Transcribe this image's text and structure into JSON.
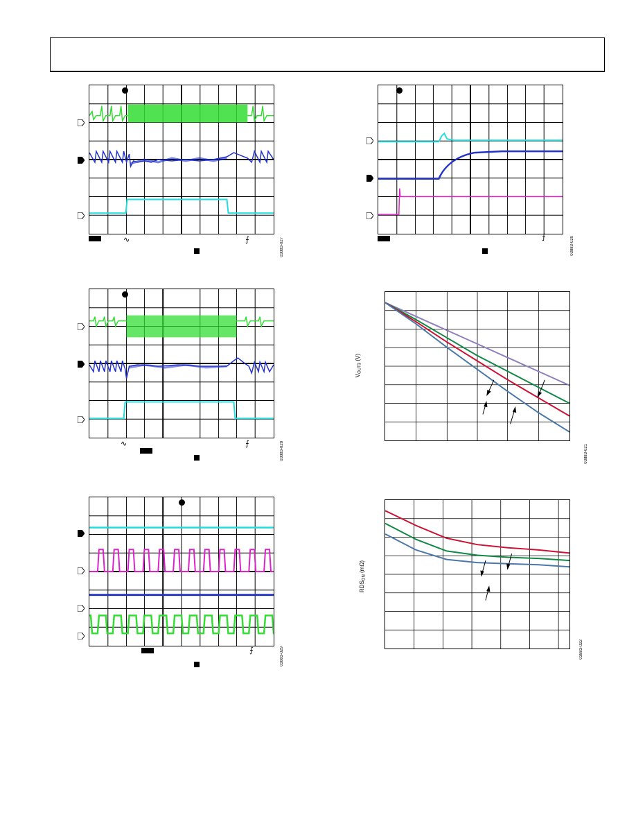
{
  "header": {
    "title": ""
  },
  "figures": {
    "fig1_id": "03883-027",
    "fig2_id": "03883-020",
    "fig3_id": "03883-028",
    "fig4_id": "03883-021",
    "fig5_id": "03883-029",
    "fig6_id": "03883-022"
  },
  "graph_vout": {
    "ylabel_main": "V",
    "ylabel_sub": "OUT3",
    "ylabel_unit": " (V)"
  },
  "graph_rds": {
    "ylabel_main": "RDS",
    "ylabel_sub": "ON",
    "ylabel_unit": " (mΩ)"
  },
  "colors": {
    "green": "#33dd33",
    "blue": "#2233cc",
    "cyan": "#22dddd",
    "magenta": "#dd22cc",
    "purple": "#8f7fbf",
    "red": "#cc1133",
    "dkgreen": "#118844",
    "steel": "#4a78a8"
  },
  "chart_data": [
    {
      "type": "line",
      "title": "",
      "xlabel": "",
      "ylabel": "VOUT3 (V)",
      "series": [
        {
          "values": [
            1.0,
            0.87,
            0.74,
            0.61,
            0.48,
            0.35,
            0.22
          ]
        },
        {
          "values": [
            1.0,
            0.84,
            0.67,
            0.5,
            0.35,
            0.2,
            0.05
          ]
        },
        {
          "values": [
            1.0,
            0.82,
            0.63,
            0.45,
            0.27,
            0.1,
            -0.07
          ]
        },
        {
          "values": [
            1.0,
            0.8,
            0.58,
            0.37,
            0.16,
            -0.04,
            -0.22
          ]
        }
      ]
    },
    {
      "type": "line",
      "title": "",
      "xlabel": "",
      "ylabel": "RDSON (mΩ)",
      "series": [
        {
          "values": [
            1.0,
            0.86,
            0.74,
            0.68,
            0.65,
            0.63,
            0.6
          ]
        },
        {
          "values": [
            0.88,
            0.73,
            0.62,
            0.58,
            0.56,
            0.55,
            0.53
          ]
        },
        {
          "values": [
            0.78,
            0.63,
            0.54,
            0.51,
            0.5,
            0.49,
            0.47
          ]
        }
      ]
    }
  ]
}
